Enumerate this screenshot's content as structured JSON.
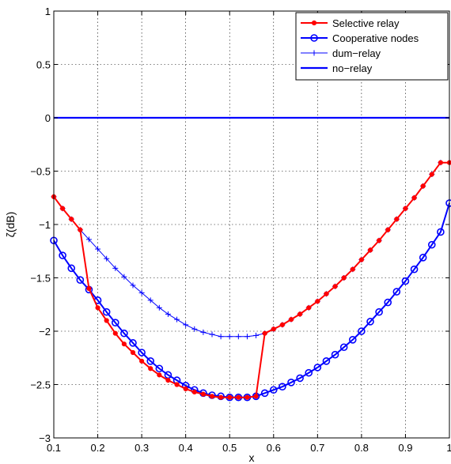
{
  "chart_data": {
    "type": "line",
    "title": "",
    "xlabel": "x",
    "ylabel": "ζ(dB)",
    "xlim": [
      0.1,
      1.0
    ],
    "ylim": [
      -3,
      1
    ],
    "xticks": [
      0.1,
      0.2,
      0.3,
      0.4,
      0.5,
      0.6,
      0.7,
      0.8,
      0.9,
      1
    ],
    "xtick_labels": [
      "0.1",
      "0.2",
      "0.3",
      "0.4",
      "0.5",
      "0.6",
      "0.7",
      "0.8",
      "0.9",
      "1"
    ],
    "yticks": [
      -3,
      -2.5,
      -2,
      -1.5,
      -1,
      -0.5,
      0,
      0.5,
      1
    ],
    "ytick_labels": [
      "−3",
      "−2.5",
      "−2",
      "−1.5",
      "−1",
      "−0.5",
      "0",
      "0.5",
      "1"
    ],
    "grid": true,
    "legend_position": "top-right",
    "legend": [
      "Selective relay",
      "Cooperative nodes",
      "dum−relay",
      "no−relay"
    ],
    "series": [
      {
        "name": "Selective relay",
        "color": "#ff0000",
        "marker": "dot",
        "x": [
          0.1,
          0.12,
          0.14,
          0.16,
          0.18,
          0.2,
          0.22,
          0.24,
          0.26,
          0.28,
          0.3,
          0.32,
          0.34,
          0.36,
          0.38,
          0.4,
          0.42,
          0.44,
          0.46,
          0.48,
          0.5,
          0.52,
          0.54,
          0.56,
          0.58,
          0.6,
          0.62,
          0.64,
          0.66,
          0.68,
          0.7,
          0.72,
          0.74,
          0.76,
          0.78,
          0.8,
          0.82,
          0.84,
          0.86,
          0.88,
          0.9,
          0.92,
          0.94,
          0.96,
          0.98,
          1.0
        ],
        "y": [
          -0.74,
          -0.85,
          -0.95,
          -1.05,
          -1.6,
          -1.78,
          -1.9,
          -2.02,
          -2.12,
          -2.2,
          -2.28,
          -2.35,
          -2.41,
          -2.46,
          -2.5,
          -2.54,
          -2.57,
          -2.59,
          -2.61,
          -2.62,
          -2.62,
          -2.62,
          -2.62,
          -2.61,
          -2.02,
          -1.98,
          -1.94,
          -1.89,
          -1.84,
          -1.78,
          -1.72,
          -1.65,
          -1.58,
          -1.5,
          -1.42,
          -1.33,
          -1.24,
          -1.15,
          -1.05,
          -0.95,
          -0.85,
          -0.75,
          -0.64,
          -0.53,
          -0.42,
          -0.42
        ]
      },
      {
        "name": "Cooperative nodes",
        "color": "#0000ff",
        "marker": "circle",
        "x": [
          0.1,
          0.12,
          0.14,
          0.16,
          0.18,
          0.2,
          0.22,
          0.24,
          0.26,
          0.28,
          0.3,
          0.32,
          0.34,
          0.36,
          0.38,
          0.4,
          0.42,
          0.44,
          0.46,
          0.48,
          0.5,
          0.52,
          0.54,
          0.56,
          0.58,
          0.6,
          0.62,
          0.64,
          0.66,
          0.68,
          0.7,
          0.72,
          0.74,
          0.76,
          0.78,
          0.8,
          0.82,
          0.84,
          0.86,
          0.88,
          0.9,
          0.92,
          0.94,
          0.96,
          0.98,
          1.0
        ],
        "y": [
          -1.15,
          -1.29,
          -1.41,
          -1.52,
          -1.61,
          -1.71,
          -1.82,
          -1.92,
          -2.02,
          -2.11,
          -2.2,
          -2.28,
          -2.35,
          -2.41,
          -2.46,
          -2.51,
          -2.55,
          -2.58,
          -2.6,
          -2.61,
          -2.62,
          -2.62,
          -2.62,
          -2.61,
          -2.58,
          -2.55,
          -2.52,
          -2.48,
          -2.44,
          -2.39,
          -2.34,
          -2.28,
          -2.22,
          -2.15,
          -2.08,
          -2.0,
          -1.91,
          -1.82,
          -1.73,
          -1.63,
          -1.53,
          -1.42,
          -1.31,
          -1.19,
          -1.07,
          -0.8
        ]
      },
      {
        "name": "dum−relay",
        "color": "#0000ff",
        "marker": "plus",
        "x": [
          0.1,
          0.12,
          0.14,
          0.16,
          0.18,
          0.2,
          0.22,
          0.24,
          0.26,
          0.28,
          0.3,
          0.32,
          0.34,
          0.36,
          0.38,
          0.4,
          0.42,
          0.44,
          0.46,
          0.48,
          0.5,
          0.52,
          0.54,
          0.56,
          0.58,
          0.6,
          0.62,
          0.64,
          0.66,
          0.68,
          0.7,
          0.72,
          0.74,
          0.76,
          0.78,
          0.8,
          0.82,
          0.84,
          0.86,
          0.88,
          0.9,
          0.92,
          0.94,
          0.96,
          0.98,
          1.0
        ],
        "y": [
          -0.74,
          -0.85,
          -0.95,
          -1.05,
          -1.14,
          -1.23,
          -1.32,
          -1.41,
          -1.49,
          -1.57,
          -1.64,
          -1.71,
          -1.78,
          -1.84,
          -1.89,
          -1.94,
          -1.98,
          -2.01,
          -2.03,
          -2.05,
          -2.05,
          -2.05,
          -2.05,
          -2.04,
          -2.02,
          -1.98,
          -1.94,
          -1.89,
          -1.84,
          -1.78,
          -1.72,
          -1.65,
          -1.58,
          -1.5,
          -1.42,
          -1.33,
          -1.24,
          -1.15,
          -1.05,
          -0.95,
          -0.85,
          -0.75,
          -0.64,
          -0.53,
          -0.42,
          -0.42
        ]
      },
      {
        "name": "no−relay",
        "color": "#0000ff",
        "marker": "none",
        "x": [
          0.1,
          1.0
        ],
        "y": [
          0,
          0
        ]
      }
    ]
  }
}
